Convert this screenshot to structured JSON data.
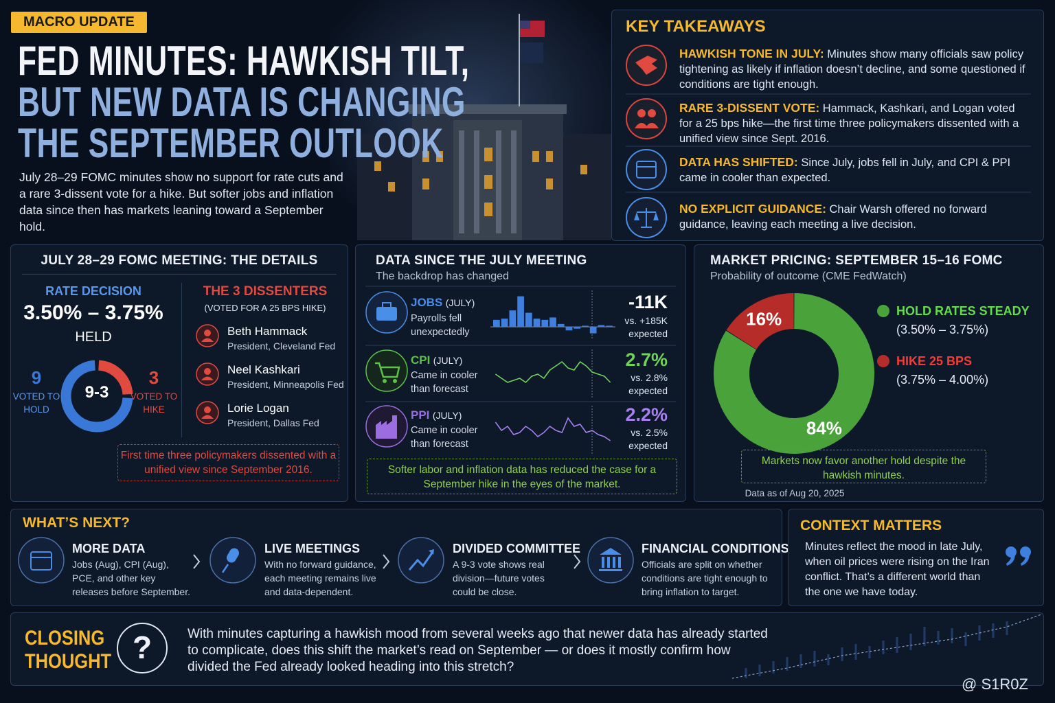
{
  "header": {
    "badge": "MACRO UPDATE",
    "title_lines": [
      "FED MINUTES: HAWKISH TILT,",
      "BUT NEW DATA IS CHANGING",
      "THE SEPTEMBER OUTLOOK"
    ],
    "intro": "July 28–29 FOMC minutes show no support for rate cuts and a rare 3-dissent vote for a hike. But softer jobs and inflation data since then has markets leaning toward a September hold."
  },
  "takeaways": {
    "title": "KEY TAKEAWAYS",
    "items": [
      {
        "label": "HAWKISH TONE IN JULY:",
        "text": "Minutes show many officials saw policy tightening as likely if inflation doesn’t decline, and some questioned if conditions are tight enough."
      },
      {
        "label": "RARE 3-DISSENT VOTE:",
        "text": "Hammack, Kashkari, and Logan voted for a 25 bps hike—the first time three policymakers dissented with a unified view since Sept. 2016."
      },
      {
        "label": "DATA HAS SHIFTED:",
        "text": "Since July, jobs fell in July, and CPI & PPI came in cooler than expected."
      },
      {
        "label": "NO EXPLICIT GUIDANCE:",
        "text": "Chair Warsh offered no forward guidance, leaving each meeting a live decision."
      }
    ]
  },
  "meeting": {
    "title": "JULY 28–29 FOMC MEETING: THE DETAILS",
    "rate_label": "RATE DECISION",
    "rate": "3.50% – 3.75%",
    "status": "HELD",
    "vote": {
      "hold": 9,
      "hold_label": "VOTED TO HOLD",
      "hike": 3,
      "hike_label": "VOTED TO HIKE",
      "center": "9-3",
      "colors": [
        "#3a78d8",
        "#e04a3f"
      ]
    },
    "dissenters": {
      "title": "THE 3 DISSENTERS",
      "subtitle": "(VOTED FOR A 25 BPS HIKE)",
      "people": [
        {
          "name": "Beth Hammack",
          "role": "President, Cleveland Fed"
        },
        {
          "name": "Neel Kashkari",
          "role": "President, Minneapolis Fed"
        },
        {
          "name": "Lorie Logan",
          "role": "President, Dallas Fed"
        }
      ]
    },
    "note": "First time three policymakers dissented with a unified view since September 2016."
  },
  "data": {
    "title": "DATA SINCE THE JULY MEETING",
    "subtitle": "The backdrop has changed",
    "rows": [
      {
        "label": "JOBS",
        "period": "(JULY)",
        "desc": "Payrolls fell unexpectedly",
        "value": "-11K",
        "compare": "vs. +185K expected",
        "color": "#4a8fe7",
        "value_color": "#ffffff",
        "chart": {
          "type": "bar",
          "color": "#3f7fe0",
          "ylim": [
            -15,
            55
          ],
          "values": [
            12,
            14,
            28,
            52,
            24,
            14,
            12,
            16,
            5,
            -6,
            -3,
            2,
            -11,
            3,
            2
          ]
        }
      },
      {
        "label": "CPI",
        "period": "(JULY)",
        "desc": "Came in cooler than forecast",
        "value": "2.7%",
        "compare": "vs. 2.8% expected",
        "color": "#5cc24a",
        "value_color": "#6fd35a",
        "chart": {
          "type": "line",
          "color": "#6fd35a",
          "ylim": [
            0,
            10
          ],
          "values": [
            5,
            4,
            3,
            3.5,
            4,
            3,
            4.5,
            5,
            4,
            6,
            7,
            8,
            6.5,
            6,
            8,
            7,
            5.5,
            5,
            4.5,
            3
          ]
        }
      },
      {
        "label": "PPI",
        "period": "(JULY)",
        "desc": "Came in cooler than forecast",
        "value": "2.2%",
        "compare": "vs. 2.5% expected",
        "color": "#9b6de0",
        "value_color": "#a77ff0",
        "chart": {
          "type": "line",
          "color": "#a77ff0",
          "ylim": [
            0,
            10
          ],
          "values": [
            7,
            5,
            6,
            4,
            4.5,
            6,
            5,
            3.5,
            4.5,
            6,
            5,
            4.5,
            8,
            6,
            6.5,
            4.5,
            5,
            4,
            3.5,
            2.5
          ]
        }
      }
    ],
    "note": "Softer labor and inflation data has reduced the case for a September hike in the eyes of the market."
  },
  "market": {
    "type": "donut",
    "title": "MARKET PRICING: SEPTEMBER 15–16 FOMC",
    "subtitle": "Probability of outcome (CME FedWatch)",
    "categories": [
      "HOLD RATES STEADY",
      "HIKE 25 BPS"
    ],
    "ranges": [
      "(3.50% – 3.75%)",
      "(3.75% – 4.00%)"
    ],
    "values": [
      84,
      16
    ],
    "value_labels": [
      "84%",
      "16%"
    ],
    "colors": [
      "#4aa33a",
      "#b52c28"
    ],
    "note": "Markets now favor another hold despite the hawkish minutes.",
    "footnote": "Data as of Aug 20, 2025"
  },
  "next": {
    "title": "WHAT’S NEXT?",
    "items": [
      {
        "title": "MORE DATA",
        "text": "Jobs (Aug), CPI (Aug), PCE, and other key releases before September."
      },
      {
        "title": "LIVE MEETINGS",
        "text": "With no forward guidance, each meeting remains live and data-dependent."
      },
      {
        "title": "DIVIDED COMMITTEE",
        "text": "A 9-3 vote shows real division—future votes could be close."
      },
      {
        "title": "FINANCIAL CONDITIONS",
        "text": "Officials are split on whether conditions are tight enough to bring inflation to target."
      }
    ]
  },
  "context": {
    "title": "CONTEXT MATTERS",
    "text": "Minutes reflect the mood in late July, when oil prices were rising on the Iran conflict. That’s a different world than the one we have today."
  },
  "closing": {
    "title_lines": [
      "CLOSING",
      "THOUGHT"
    ],
    "icon": "?",
    "text": "With minutes capturing a hawkish mood from several weeks ago that newer data has already started to complicate, does this shift the market’s read on September — or does it mostly confirm how divided the Fed already looked heading into this stretch?"
  },
  "watermark": "@ S1R0Z"
}
